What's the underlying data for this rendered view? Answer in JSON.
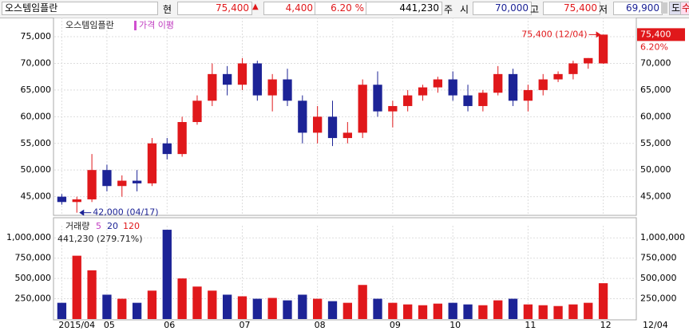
{
  "toolbar": {
    "stock_name": "오스템임플란",
    "items": [
      "현",
      "75,400",
      "▲",
      "4,400",
      "6.20 %",
      "441,230",
      "주",
      "시",
      "70,000",
      "고",
      "75,400",
      "저",
      "69,900",
      "도",
      "수"
    ]
  },
  "chart_data": [
    {
      "type": "candlestick",
      "legend": [
        "오스템임플란",
        "가격 이평"
      ],
      "categories": [
        "2015/04",
        null,
        null,
        "05",
        null,
        null,
        null,
        "06",
        null,
        null,
        null,
        null,
        "07",
        null,
        null,
        null,
        null,
        "08",
        null,
        null,
        null,
        null,
        "09",
        null,
        null,
        null,
        "10",
        null,
        null,
        null,
        null,
        "11",
        null,
        null,
        null,
        null,
        "12"
      ],
      "open": [
        45000,
        44000,
        44500,
        50000,
        47000,
        48000,
        47500,
        55000,
        53000,
        59000,
        63000,
        68000,
        66000,
        70000,
        64000,
        67000,
        63000,
        57000,
        60000,
        56000,
        57000,
        66000,
        61000,
        62000,
        64000,
        65500,
        67000,
        64000,
        62000,
        64500,
        68000,
        63000,
        65000,
        67000,
        68000,
        70000,
        70000
      ],
      "high": [
        45500,
        45000,
        53000,
        51000,
        49000,
        50000,
        56000,
        56000,
        60000,
        64000,
        70000,
        69500,
        71000,
        70500,
        68000,
        69000,
        64000,
        62000,
        63000,
        59000,
        67000,
        68500,
        63000,
        65000,
        66000,
        67500,
        68500,
        66000,
        65000,
        69500,
        69000,
        66000,
        68000,
        68500,
        70500,
        71000,
        75400
      ],
      "low": [
        43500,
        42000,
        44000,
        46000,
        45000,
        46000,
        47000,
        52000,
        52500,
        58500,
        62000,
        64000,
        65000,
        63000,
        61000,
        62000,
        55000,
        55000,
        54500,
        55000,
        56000,
        60000,
        58000,
        61000,
        63000,
        64500,
        63000,
        61000,
        61000,
        64000,
        62000,
        61000,
        64000,
        66500,
        67000,
        69000,
        69900
      ],
      "close": [
        44000,
        44500,
        50000,
        47000,
        48000,
        47500,
        55000,
        53000,
        59000,
        63000,
        68000,
        66000,
        70000,
        64000,
        67000,
        63000,
        57000,
        60000,
        56000,
        57000,
        66000,
        61000,
        62000,
        64000,
        65500,
        67000,
        64000,
        62000,
        64500,
        68000,
        63000,
        65000,
        67000,
        68000,
        70000,
        71000,
        75400
      ],
      "up_color": "#e0181b",
      "down_color": "#1c2396",
      "ylim": [
        41500,
        78300
      ],
      "yticks": [
        {
          "value": 45000,
          "label": "45,000"
        },
        {
          "value": 50000,
          "label": "50,000"
        },
        {
          "value": 55000,
          "label": "55,000"
        },
        {
          "value": 60000,
          "label": "60,000"
        },
        {
          "value": 65000,
          "label": "65,000"
        },
        {
          "value": 70000,
          "label": "70,000"
        },
        {
          "value": 75000,
          "label": "75,000"
        }
      ],
      "annotations": [
        {
          "value": 75400,
          "label": "75,400 (12/04)"
        },
        {
          "value": 42000,
          "label": "42,000 (04/17)"
        }
      ],
      "last_price": {
        "value": 75400,
        "label": "75,400"
      },
      "change_label": "6.20%",
      "x_end_label": "12/04"
    },
    {
      "type": "bar",
      "legend": [
        "거래량",
        "5",
        "20",
        "120"
      ],
      "info": "441,230 (279.71%)",
      "values": [
        200000,
        780000,
        600000,
        300000,
        250000,
        200000,
        350000,
        1100000,
        500000,
        400000,
        350000,
        300000,
        280000,
        250000,
        260000,
        230000,
        300000,
        250000,
        220000,
        200000,
        420000,
        250000,
        200000,
        180000,
        170000,
        190000,
        200000,
        180000,
        170000,
        230000,
        250000,
        180000,
        170000,
        160000,
        180000,
        200000,
        441230
      ],
      "ylim": [
        0,
        1130000
      ],
      "yticks": [
        {
          "value": 250000,
          "label": "250,000"
        },
        {
          "value": 500000,
          "label": "500,000"
        },
        {
          "value": 750000,
          "label": "750,000"
        },
        {
          "value": 1000000,
          "label": "1,000,000"
        }
      ]
    }
  ]
}
